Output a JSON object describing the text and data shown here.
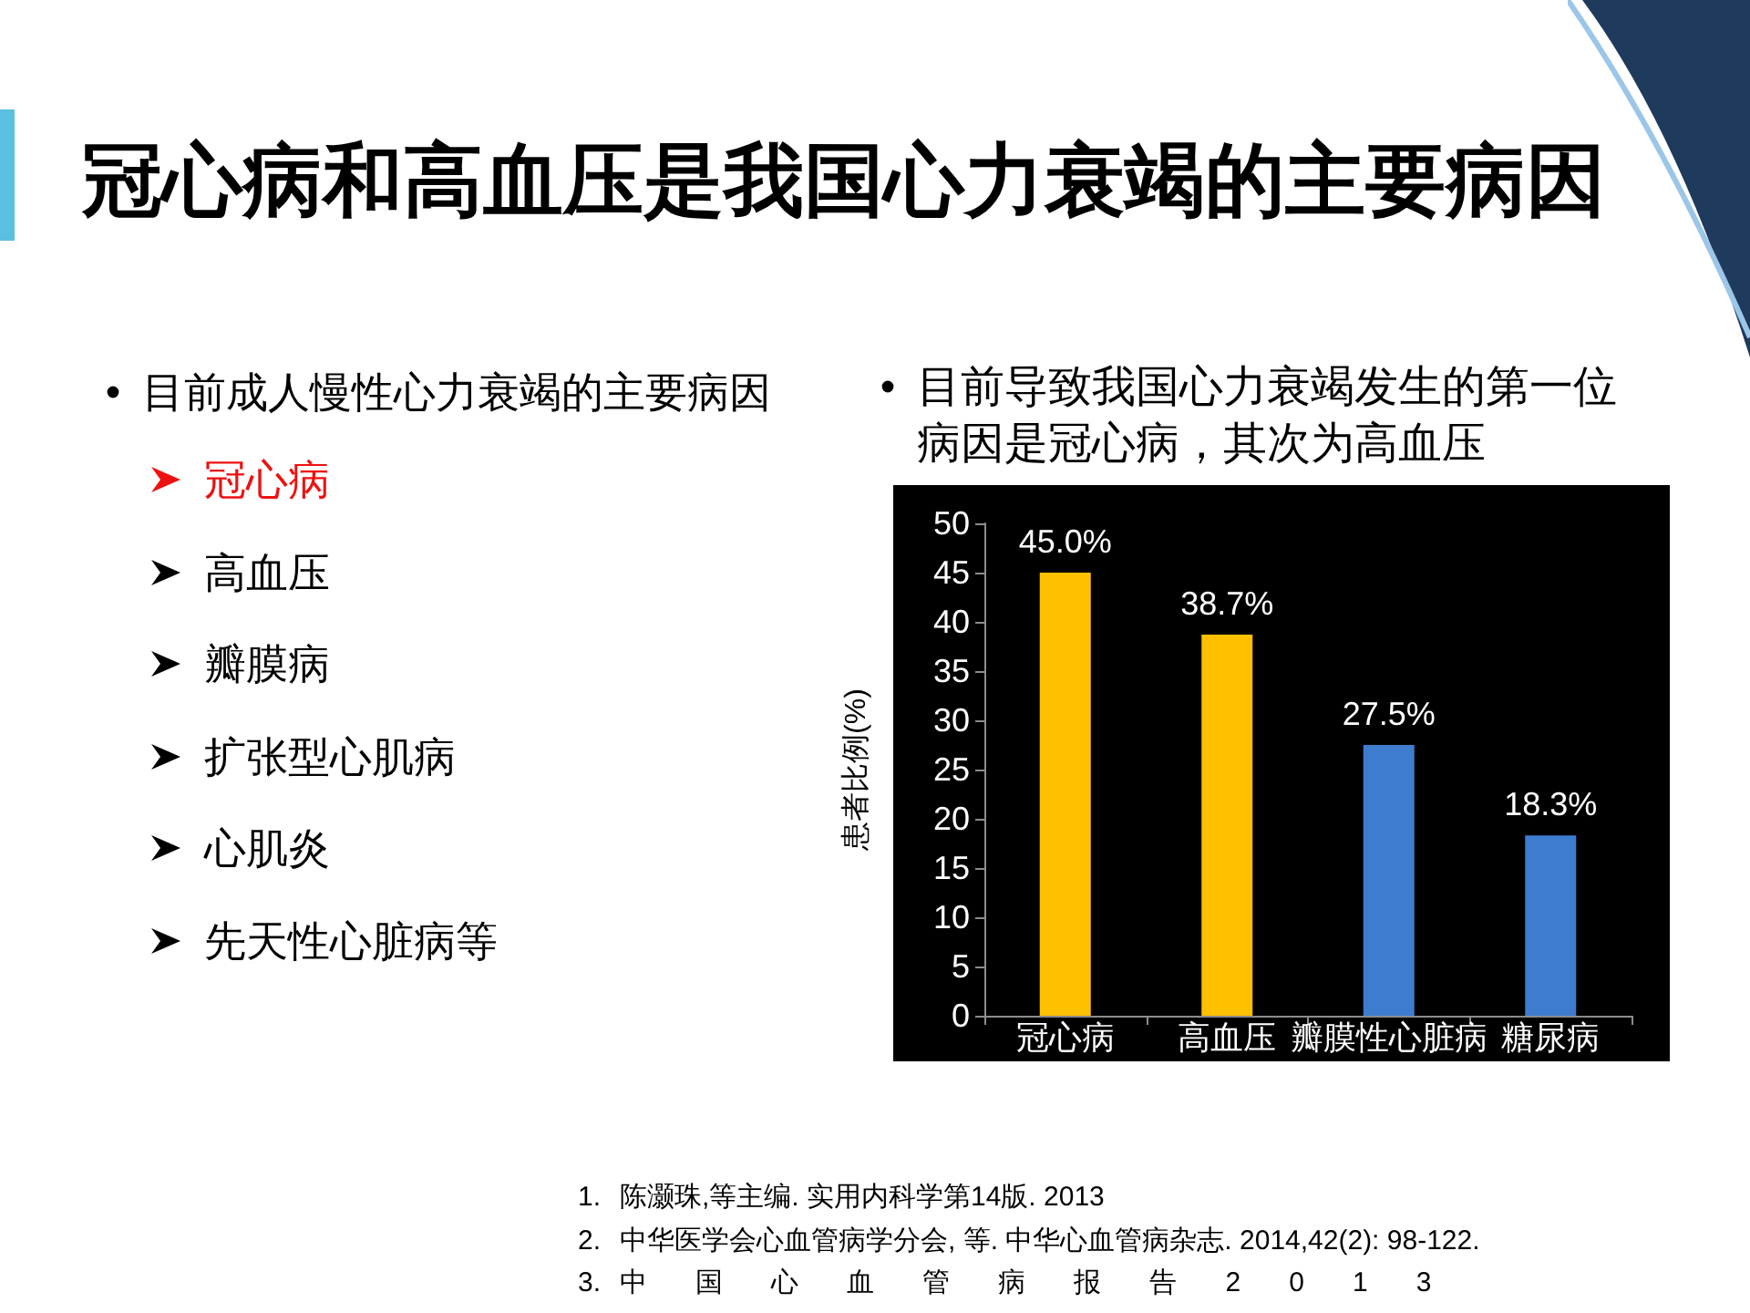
{
  "chart_data": {
    "type": "bar",
    "title": "冠心病和高血压是我国心力衰竭的主要病因",
    "categories": [
      "冠心病",
      "高血压",
      "瓣膜性心脏病",
      "糖尿病"
    ],
    "values": [
      45.0,
      38.7,
      27.5,
      18.3
    ],
    "colors": [
      "#ffc000",
      "#ffc000",
      "#3d7ccf",
      "#3d7ccf"
    ],
    "value_labels": [
      "45.0%",
      "38.7%",
      "27.5%",
      "18.3%"
    ],
    "ylabel": "患者比例(%)",
    "ylim": [
      0,
      50
    ],
    "yticks": [
      0,
      5,
      10,
      15,
      20,
      25,
      30,
      35,
      40,
      45,
      50
    ],
    "grid": false,
    "annotations": [
      "目前成人慢性心力衰竭的主要病因",
      "冠心病",
      "高血压",
      "瓣膜病",
      "扩张型心肌病",
      "心肌炎",
      "先天性心脏病等",
      "目前导致我国心力衰竭发生的第一位病因是冠心病，其次为高血压",
      "1. 陈灏珠,等主编. 实用内科学第14版. 2013",
      "2. 中华医学会心血管病学分会, 等. 中华心血管病杂志. 2014,42(2): 98-122.",
      "3. 中国心血管病报告2013"
    ]
  }
}
